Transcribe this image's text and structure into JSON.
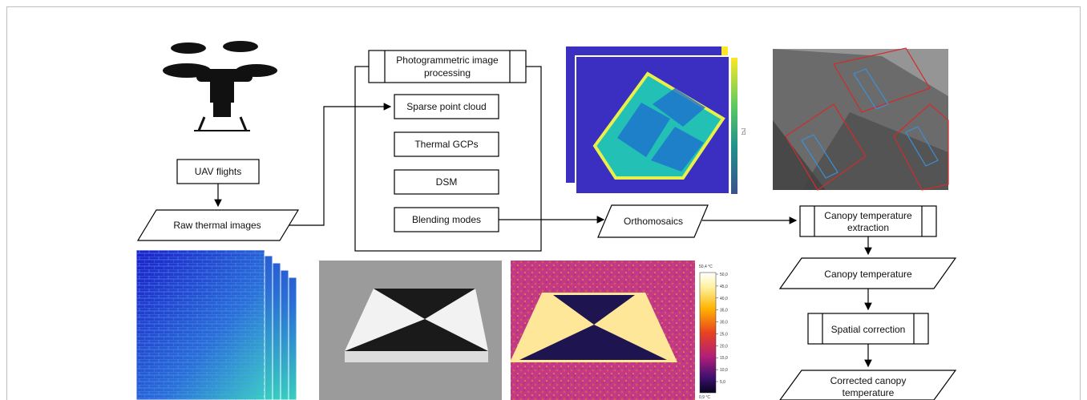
{
  "nodes": {
    "uav_flights": "UAV flights",
    "raw_thermal_images": "Raw thermal images",
    "photogrammetric_l1": "Photogrammetric image",
    "photogrammetric_l2": "processing",
    "sparse_point_cloud": "Sparse point cloud",
    "thermal_gcps": "Thermal GCPs",
    "dsm": "DSM",
    "blending_modes": "Blending modes",
    "orthomosaics": "Orthomosaics",
    "canopy_extraction_l1": "Canopy temperature",
    "canopy_extraction_l2": "extraction",
    "canopy_temperature": "Canopy temperature",
    "spatial_correction": "Spatial correction",
    "corrected_l1": "Corrected canopy",
    "corrected_l2": "temperature"
  },
  "thermal_scale": {
    "max_label": "50,4 °C",
    "min_label": "0,9 °C",
    "ticks": [
      "50,0",
      "45,0",
      "40,0",
      "35,0",
      "30,0",
      "25,0",
      "20,0",
      "15,0",
      "10,0",
      "5,0"
    ]
  },
  "ortho_scale_label": "[°C]",
  "colors": {
    "box_stroke": "#000000",
    "thermal_blue": "#2b2bd4",
    "ortho_bg": "#3a2fc0",
    "ortho_field": "#2fb5b0",
    "magenta_bg": "#c23a86",
    "grey_bg": "#6b6b6b",
    "plot_red": "#d22b2b",
    "plot_blue": "#3d8fd6"
  }
}
